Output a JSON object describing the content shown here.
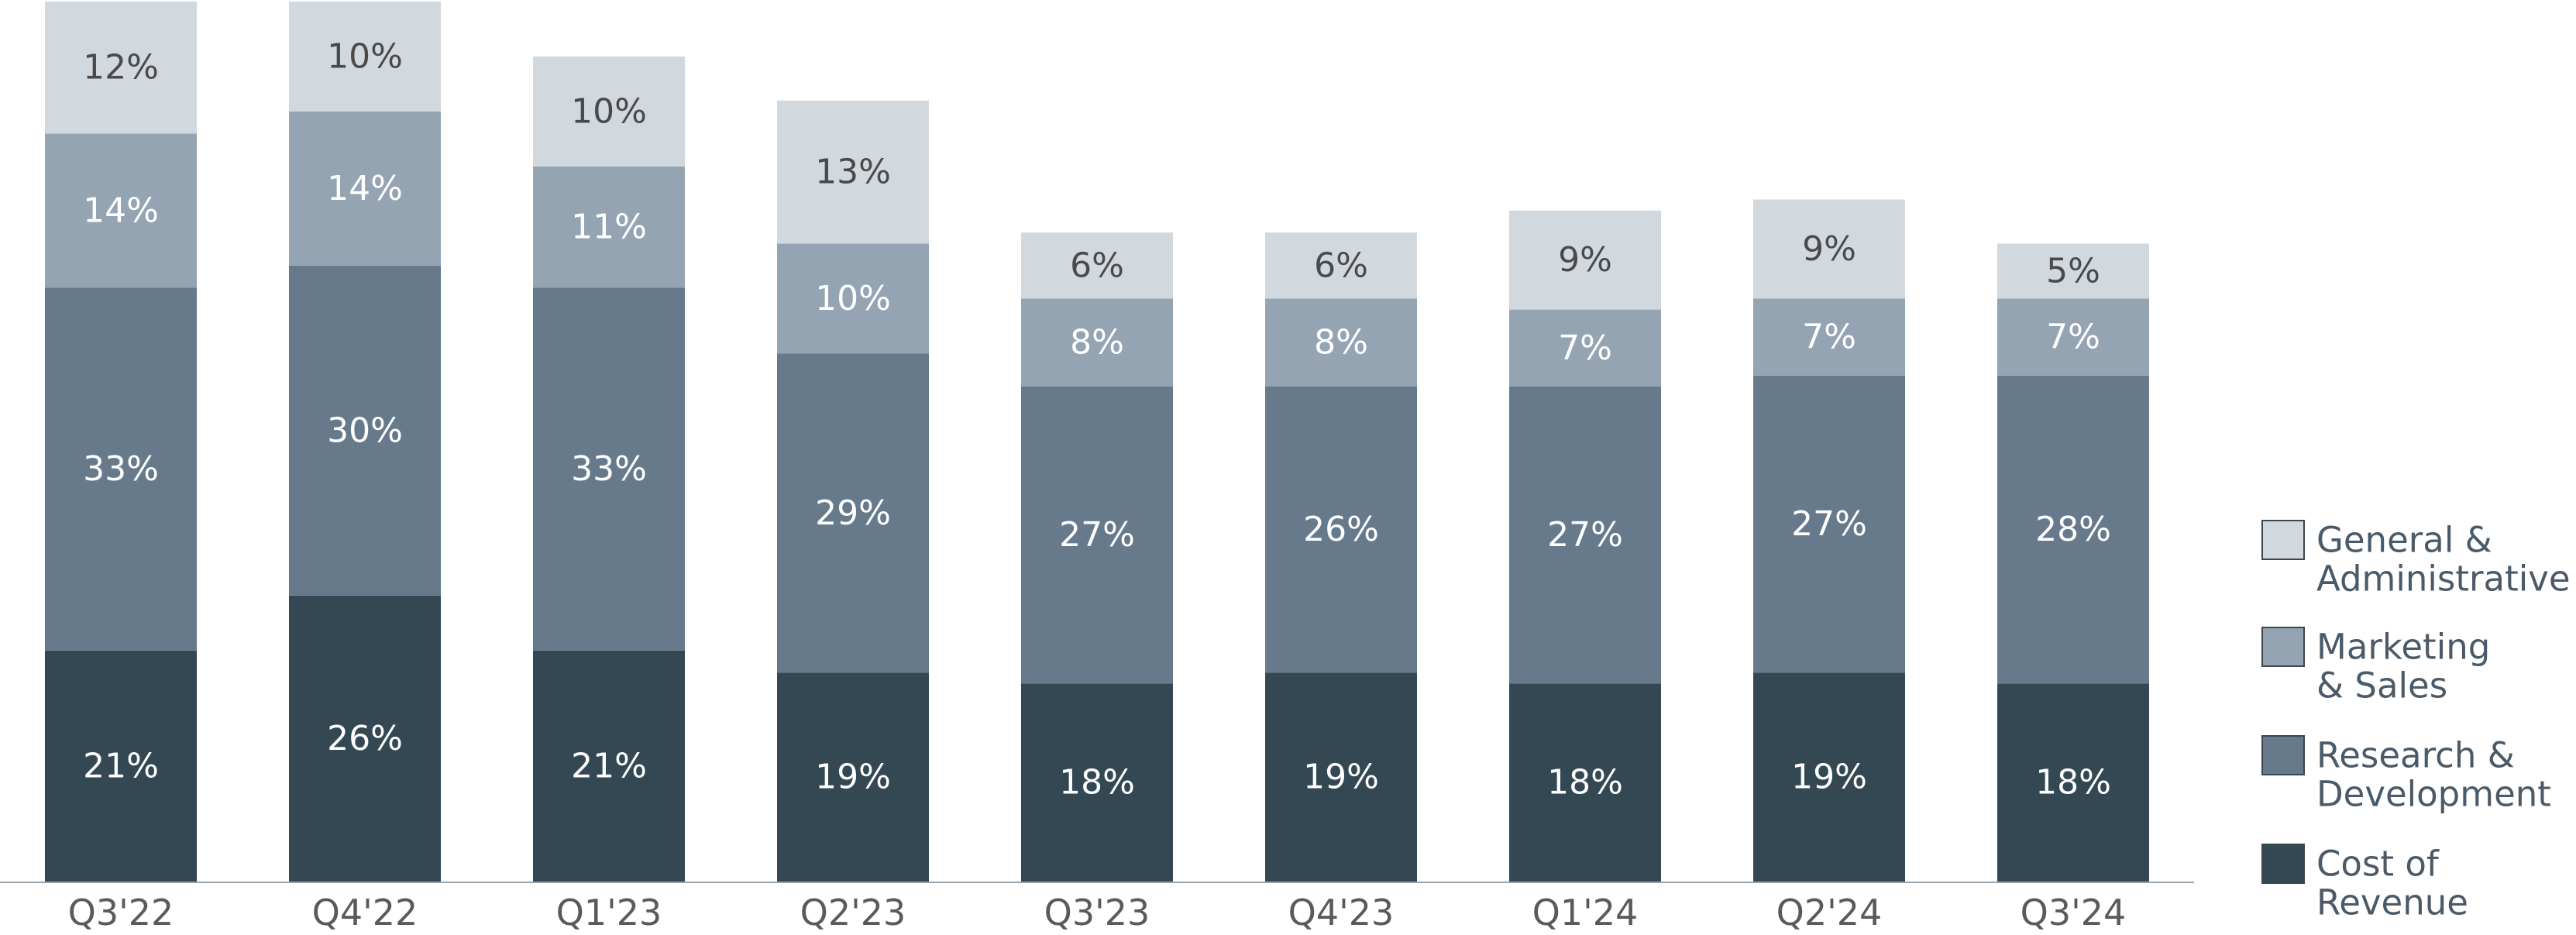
{
  "chart_data": {
    "type": "bar",
    "stacked": true,
    "categories": [
      "Q3'22",
      "Q4'22",
      "Q1'23",
      "Q2'23",
      "Q3'23",
      "Q4'23",
      "Q1'24",
      "Q2'24",
      "Q3'24"
    ],
    "series": [
      {
        "name": "Cost of Revenue",
        "values": [
          21,
          26,
          21,
          19,
          18,
          19,
          18,
          19,
          18
        ],
        "color": "#344854",
        "label_color": "#ffffff"
      },
      {
        "name": "Research & Development",
        "values": [
          33,
          30,
          33,
          29,
          27,
          26,
          27,
          27,
          28
        ],
        "color": "#667a8c",
        "label_color": "#ffffff"
      },
      {
        "name": "Marketing & Sales",
        "values": [
          14,
          14,
          11,
          10,
          8,
          8,
          7,
          7,
          7
        ],
        "color": "#94a4b2",
        "label_color": "#ffffff"
      },
      {
        "name": "General & Administrative",
        "values": [
          12,
          10,
          10,
          13,
          6,
          6,
          9,
          9,
          5
        ],
        "color": "#d1d8de",
        "label_color": "#4a4a4a"
      }
    ],
    "value_suffix": "%",
    "legend": {
      "position": "right",
      "entries": [
        {
          "series": "General & Administrative",
          "lines": [
            "General &",
            "Administrative"
          ]
        },
        {
          "series": "Marketing & Sales",
          "lines": [
            "Marketing",
            "& Sales"
          ]
        },
        {
          "series": "Research & Development",
          "lines": [
            "Research &",
            "Development"
          ]
        },
        {
          "series": "Cost of Revenue",
          "lines": [
            "Cost of",
            "Revenue"
          ]
        }
      ]
    },
    "grid": false,
    "axis_color": "#9aa3ab",
    "tick_label_color": "#5a5a5a",
    "legend_text_color": "#4a5a68"
  }
}
